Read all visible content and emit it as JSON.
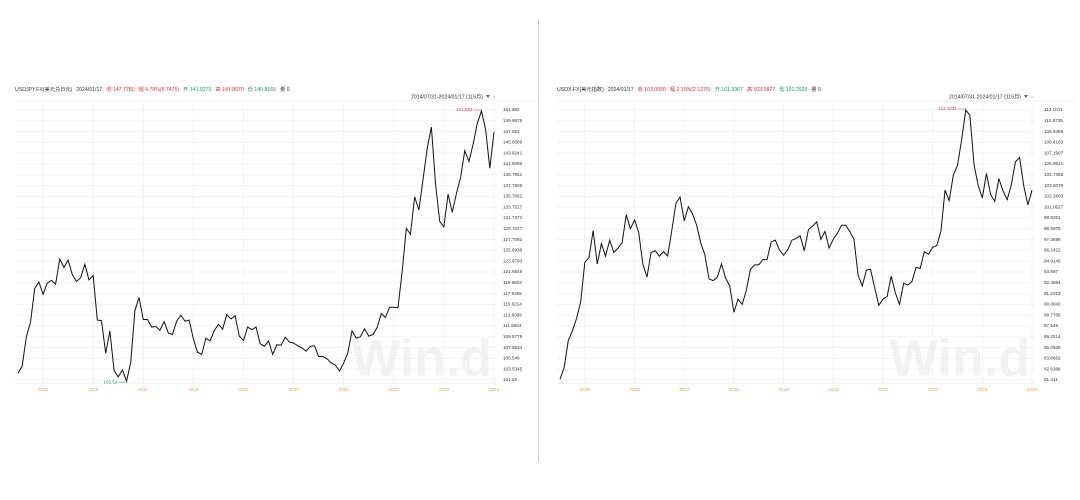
{
  "chart_data": [
    {
      "type": "line",
      "header": [
        {
          "text": "USDJPY.FX(美元兑日元)",
          "color": "#333333"
        },
        {
          "text": "2024/01/17",
          "color": "#333333"
        },
        {
          "text": "收 147.7780",
          "color": "#e03030"
        },
        {
          "text": "幅 4.78%(6.7475)",
          "color": "#e03030"
        },
        {
          "text": "开 141.0275",
          "color": "#1a9a5a"
        },
        {
          "text": "高 147.8870",
          "color": "#e03030"
        },
        {
          "text": "低 140.8165",
          "color": "#1a9a5a"
        },
        {
          "text": "量 0",
          "color": "#333333"
        }
      ],
      "range_label": "2014/07/31-2024/01/17 (115月)",
      "watermark": "Win.d",
      "color": "#111111",
      "grid": true,
      "categories": [
        null,
        null,
        null,
        null,
        null,
        null,
        "2015",
        null,
        null,
        null,
        null,
        null,
        null,
        null,
        null,
        null,
        null,
        null,
        "2016",
        null,
        null,
        null,
        null,
        null,
        null,
        null,
        null,
        null,
        null,
        null,
        "2017",
        null,
        null,
        null,
        null,
        null,
        null,
        null,
        null,
        null,
        null,
        null,
        "2018",
        null,
        null,
        null,
        null,
        null,
        null,
        null,
        null,
        null,
        null,
        null,
        "2019",
        null,
        null,
        null,
        null,
        null,
        null,
        null,
        null,
        null,
        null,
        null,
        "2020",
        null,
        null,
        null,
        null,
        null,
        null,
        null,
        null,
        null,
        null,
        null,
        "2021",
        null,
        null,
        null,
        null,
        null,
        null,
        null,
        null,
        null,
        null,
        null,
        "2022",
        null,
        null,
        null,
        null,
        null,
        null,
        null,
        null,
        null,
        null,
        null,
        "2023",
        null,
        null,
        null,
        null,
        null,
        null,
        null,
        null,
        null,
        null,
        null,
        "2024"
      ],
      "values": [
        102.8,
        104.1,
        109.6,
        112.3,
        118.6,
        119.8,
        117.5,
        119.6,
        120.1,
        119.4,
        124.1,
        122.5,
        123.9,
        121.2,
        119.9,
        120.6,
        123.1,
        120.2,
        121.0,
        112.7,
        112.6,
        106.5,
        110.7,
        103.3,
        102.1,
        103.4,
        101.3,
        104.8,
        114.5,
        116.9,
        112.8,
        112.8,
        111.4,
        111.5,
        110.8,
        112.4,
        110.3,
        110.0,
        112.5,
        113.6,
        112.5,
        112.7,
        109.2,
        106.7,
        106.3,
        109.3,
        108.8,
        110.7,
        111.9,
        111.0,
        113.7,
        112.9,
        113.5,
        109.7,
        108.9,
        111.4,
        110.9,
        111.4,
        108.3,
        107.8,
        108.8,
        106.3,
        108.1,
        108.0,
        109.5,
        108.6,
        108.4,
        107.9,
        107.5,
        106.9,
        107.8,
        107.9,
        105.9,
        105.9,
        105.5,
        104.7,
        104.3,
        103.2,
        104.7,
        106.6,
        110.7,
        109.3,
        109.6,
        111.1,
        109.7,
        110.0,
        111.3,
        113.9,
        113.2,
        115.1,
        115.1,
        115.0,
        121.7,
        129.8,
        128.7,
        135.7,
        133.2,
        138.9,
        144.7,
        148.7,
        138.1,
        131.1,
        130.1,
        136.2,
        132.8,
        136.3,
        139.3,
        144.3,
        142.3,
        145.5,
        149.4,
        151.7,
        148.2,
        141.0,
        147.8
      ],
      "ylim": [
        101.52,
        151.882
      ],
      "yticks": [
        101.52,
        103.5345,
        105.549,
        107.5634,
        109.5779,
        111.5924,
        113.6069,
        115.6214,
        117.6358,
        119.6503,
        121.6648,
        123.6793,
        125.6938,
        127.7082,
        129.7227,
        131.7372,
        133.7517,
        135.7662,
        137.7806,
        139.7951,
        141.8096,
        143.8241,
        145.8386,
        147.853,
        149.8675,
        151.882
      ],
      "annotations": [
        {
          "text": "151.882",
          "at": "max",
          "color": "#e03030"
        },
        {
          "text": "101.52",
          "at": "min",
          "color": "#1a9a5a"
        }
      ]
    },
    {
      "type": "line",
      "header": [
        {
          "text": "USDX.FX(美元指数)",
          "color": "#333333"
        },
        {
          "text": "2024/01/17",
          "color": "#333333"
        },
        {
          "text": "收 103.0050",
          "color": "#e03030"
        },
        {
          "text": "幅 2.15%(2.1275)",
          "color": "#e03030"
        },
        {
          "text": "开 101.3967",
          "color": "#1a9a5a"
        },
        {
          "text": "高 103.0877",
          "color": "#e03030"
        },
        {
          "text": "低 101.2929",
          "color": "#1a9a5a"
        },
        {
          "text": "量 0",
          "color": "#333333"
        }
      ],
      "range_label": "2014/07/31-2024/01/17 (115月)",
      "watermark": "Win.d",
      "color": "#111111",
      "grid": true,
      "categories": [
        null,
        null,
        null,
        null,
        null,
        null,
        "2015",
        null,
        null,
        null,
        null,
        null,
        null,
        null,
        null,
        null,
        null,
        null,
        "2016",
        null,
        null,
        null,
        null,
        null,
        null,
        null,
        null,
        null,
        null,
        null,
        "2017",
        null,
        null,
        null,
        null,
        null,
        null,
        null,
        null,
        null,
        null,
        null,
        "2018",
        null,
        null,
        null,
        null,
        null,
        null,
        null,
        null,
        null,
        null,
        null,
        "2019",
        null,
        null,
        null,
        null,
        null,
        null,
        null,
        null,
        null,
        null,
        null,
        "2020",
        null,
        null,
        null,
        null,
        null,
        null,
        null,
        null,
        null,
        null,
        null,
        "2021",
        null,
        null,
        null,
        null,
        null,
        null,
        null,
        null,
        null,
        null,
        null,
        "2022",
        null,
        null,
        null,
        null,
        null,
        null,
        null,
        null,
        null,
        null,
        null,
        "2023",
        null,
        null,
        null,
        null,
        null,
        null,
        null,
        null,
        null,
        null,
        null,
        "2024"
      ],
      "values": [
        81.5,
        82.8,
        85.9,
        87.0,
        88.4,
        90.3,
        94.8,
        95.3,
        98.4,
        94.6,
        96.9,
        95.5,
        97.3,
        95.9,
        96.4,
        97.0,
        100.2,
        98.6,
        99.6,
        98.2,
        94.6,
        93.1,
        95.9,
        96.1,
        95.5,
        96.0,
        95.5,
        98.4,
        101.5,
        102.2,
        99.5,
        101.1,
        100.3,
        99.0,
        97.0,
        95.6,
        92.9,
        92.7,
        93.1,
        94.6,
        93.0,
        92.1,
        89.1,
        90.6,
        90.0,
        91.6,
        94.0,
        94.5,
        94.5,
        95.1,
        95.1,
        97.1,
        97.3,
        96.2,
        95.6,
        96.2,
        97.3,
        97.5,
        97.8,
        96.1,
        98.5,
        98.9,
        99.4,
        97.4,
        98.3,
        96.4,
        97.4,
        98.1,
        99.0,
        99.0,
        98.3,
        97.4,
        93.3,
        92.1,
        93.9,
        94.0,
        91.9,
        89.9,
        90.6,
        90.9,
        93.2,
        91.3,
        90.0,
        92.4,
        92.2,
        92.6,
        94.2,
        94.1,
        96.0,
        95.7,
        96.5,
        96.7,
        98.3,
        103.0,
        101.8,
        104.7,
        105.8,
        108.7,
        112.1,
        111.5,
        105.9,
        103.5,
        102.1,
        104.9,
        102.5,
        101.7,
        104.3,
        102.9,
        101.9,
        103.6,
        106.2,
        106.7,
        103.5,
        101.3,
        103.0
      ],
      "ylim": [
        81.411,
        112.1011
      ],
      "yticks": [
        81.411,
        82.6386,
        83.8662,
        85.0938,
        86.3214,
        87.549,
        88.7766,
        90.0042,
        91.2318,
        92.4594,
        93.687,
        94.9146,
        96.1422,
        97.3698,
        98.5975,
        99.8251,
        101.0527,
        102.2803,
        103.5079,
        104.7355,
        105.9631,
        107.1907,
        108.4183,
        109.6459,
        110.8735,
        112.1011
      ],
      "annotations": [
        {
          "text": "112.1011",
          "at": "max",
          "color": "#e03030"
        }
      ]
    }
  ]
}
